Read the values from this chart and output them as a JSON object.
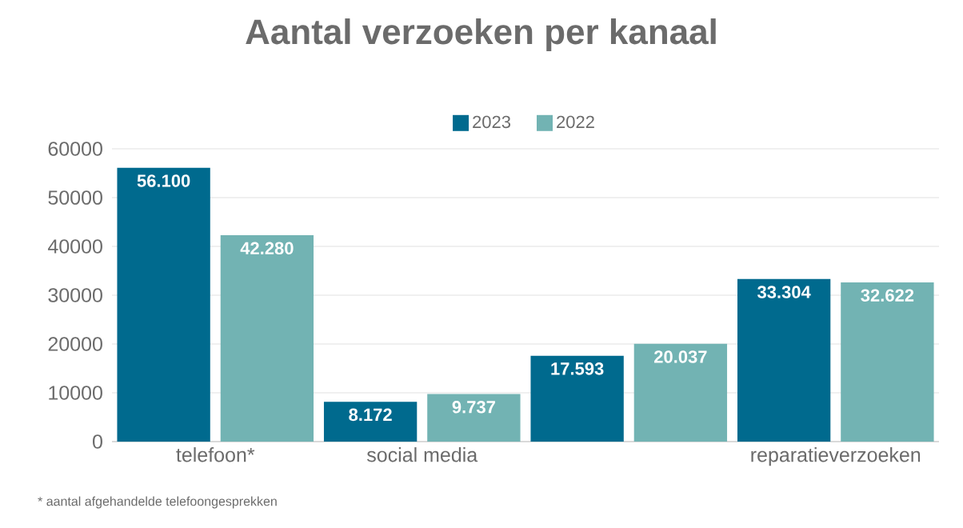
{
  "chart_data": {
    "type": "bar",
    "title": "Aantal verzoeken per kanaal",
    "categories": [
      "telefoon*",
      "social media",
      null,
      "reparatieverzoeken"
    ],
    "series": [
      {
        "name": "2023",
        "color": "#006a8e",
        "values": [
          56100,
          8172,
          17593,
          33304
        ],
        "value_labels": [
          "56.100",
          "8.172",
          "17.593",
          "33.304"
        ]
      },
      {
        "name": "2022",
        "color": "#72b3b3",
        "values": [
          42280,
          9737,
          20037,
          32622
        ],
        "value_labels": [
          "42.280",
          "9.737",
          "20.037",
          "32.622"
        ]
      }
    ],
    "ylim": [
      0,
      60000
    ],
    "yticks": [
      0,
      10000,
      20000,
      30000,
      40000,
      50000,
      60000
    ],
    "grid": "y",
    "legend": "top",
    "annotations": [
      "* aantal afgehandelde telefoongesprekken"
    ]
  }
}
